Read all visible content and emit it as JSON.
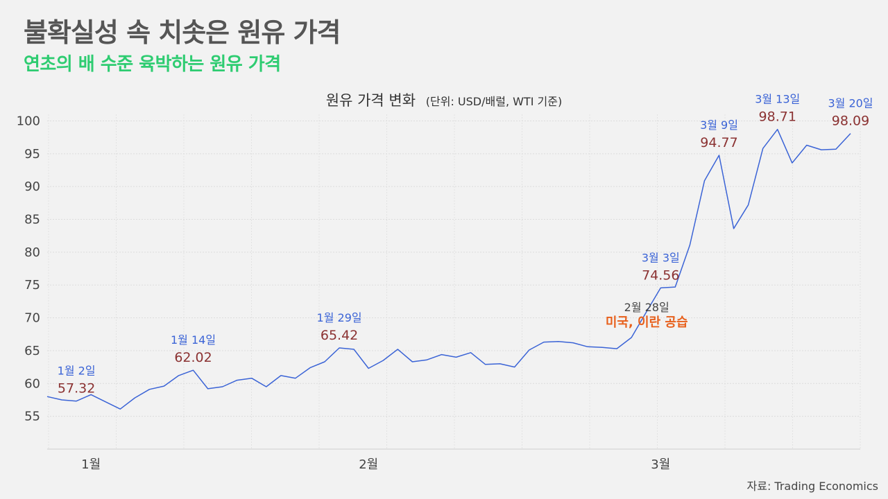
{
  "header": {
    "title": "불확실성 속 치솟은 원유 가격",
    "subtitle": "연초의 배 수준 육박하는 원유 가격"
  },
  "source": "자료: Trading Economics",
  "colors": {
    "line": "#3a63d6",
    "subtitle": "#2ecc71",
    "date_label": "#3a63d6",
    "value_label": "#8b3232",
    "event": "#e8601c"
  },
  "chart_data": {
    "type": "line",
    "title": "원유 가격 변화",
    "title_note": "(단위: USD/배럴, WTI 기준)",
    "ylim": [
      50,
      101
    ],
    "yticks": [
      55,
      60,
      65,
      70,
      75,
      80,
      85,
      90,
      95,
      100
    ],
    "x_ticks": [
      "1월",
      "2월",
      "3월"
    ],
    "grid": true,
    "series": [
      {
        "values": [
          58.0,
          57.5,
          57.32,
          58.3,
          57.2,
          56.1,
          57.8,
          59.1,
          59.6,
          61.2,
          62.02,
          59.2,
          59.5,
          60.5,
          60.8,
          59.5,
          61.2,
          60.8,
          62.4,
          63.3,
          65.42,
          65.2,
          62.3,
          63.5,
          65.2,
          63.3,
          63.6,
          64.4,
          64.0,
          64.7,
          62.9,
          63.0,
          62.5,
          65.1,
          66.3,
          66.4,
          66.2,
          65.6,
          65.5,
          65.3,
          67.0,
          70.8,
          74.56,
          74.7,
          81.1,
          90.9,
          94.77,
          83.6,
          87.2,
          95.8,
          98.71,
          93.6,
          96.3,
          95.6,
          95.7,
          98.09
        ]
      }
    ],
    "annotations": [
      {
        "index": 2,
        "date": "1월 2일",
        "value": "57.32"
      },
      {
        "index": 10,
        "date": "1월 14일",
        "value": "62.02"
      },
      {
        "index": 20,
        "date": "1월 29일",
        "value": "65.42"
      },
      {
        "index": 42,
        "date": "3월 3일",
        "value": "74.56"
      },
      {
        "index": 46,
        "date": "3월 9일",
        "value": "94.77"
      },
      {
        "index": 50,
        "date": "3월 13일",
        "value": "98.71"
      },
      {
        "index": 55,
        "date": "3월 20일",
        "value": "98.09"
      }
    ],
    "event": {
      "date": "2월 28일",
      "text": "미국, 이란 공습"
    }
  }
}
